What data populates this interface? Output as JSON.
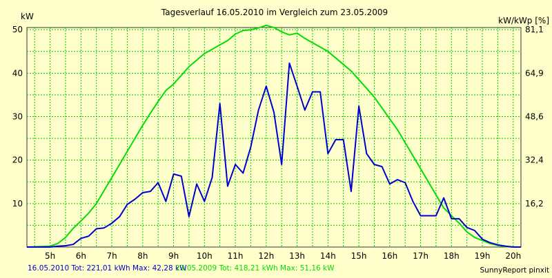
{
  "chart_data": {
    "type": "line",
    "title": "Tagesverlauf 16.05.2010 im Vergleich zum 23.05.2009",
    "ylabel_left": "kW",
    "ylabel_right": "kW/kWp [%]",
    "xlim": [
      4.25,
      20.25
    ],
    "ylim": [
      0,
      50.5
    ],
    "grid": true,
    "x_ticks": [
      {
        "x": 5,
        "label": "5h"
      },
      {
        "x": 6,
        "label": "6h"
      },
      {
        "x": 7,
        "label": "7h"
      },
      {
        "x": 8,
        "label": "8h"
      },
      {
        "x": 9,
        "label": "9h"
      },
      {
        "x": 10,
        "label": "10h"
      },
      {
        "x": 11,
        "label": "11h"
      },
      {
        "x": 12,
        "label": "12h"
      },
      {
        "x": 13,
        "label": "13h"
      },
      {
        "x": 14,
        "label": "14h"
      },
      {
        "x": 15,
        "label": "15h"
      },
      {
        "x": 16,
        "label": "16h"
      },
      {
        "x": 17,
        "label": "17h"
      },
      {
        "x": 18,
        "label": "18h"
      },
      {
        "x": 19,
        "label": "19h"
      },
      {
        "x": 20,
        "label": "20h"
      }
    ],
    "y_ticks_left": [
      {
        "y": 10,
        "label": "10"
      },
      {
        "y": 20,
        "label": "20"
      },
      {
        "y": 30,
        "label": "30"
      },
      {
        "y": 40,
        "label": "40"
      },
      {
        "y": 50,
        "label": "50"
      }
    ],
    "y_ticks_right": [
      {
        "y": 10,
        "label": "16,2"
      },
      {
        "y": 20,
        "label": "32,4"
      },
      {
        "y": 30,
        "label": "48,6"
      },
      {
        "y": 40,
        "label": "64,9"
      },
      {
        "y": 50,
        "label": "81,1"
      }
    ],
    "series": [
      {
        "color": "#0000cc",
        "points": [
          [
            4.25,
            0
          ],
          [
            5,
            0
          ],
          [
            5.25,
            0.2
          ],
          [
            5.5,
            0.3
          ],
          [
            5.75,
            0.6
          ],
          [
            6,
            2.0
          ],
          [
            6.25,
            2.5
          ],
          [
            6.5,
            4.2
          ],
          [
            6.75,
            4.4
          ],
          [
            7,
            5.5
          ],
          [
            7.25,
            7.0
          ],
          [
            7.5,
            9.8
          ],
          [
            7.75,
            11.0
          ],
          [
            8,
            12.5
          ],
          [
            8.25,
            12.8
          ],
          [
            8.5,
            14.8
          ],
          [
            8.75,
            10.5
          ],
          [
            9,
            16.8
          ],
          [
            9.25,
            16.3
          ],
          [
            9.5,
            7.0
          ],
          [
            9.75,
            14.5
          ],
          [
            10,
            10.5
          ],
          [
            10.25,
            16.0
          ],
          [
            10.5,
            33.0
          ],
          [
            10.75,
            14.0
          ],
          [
            11,
            19.0
          ],
          [
            11.25,
            17.0
          ],
          [
            11.5,
            23.0
          ],
          [
            11.75,
            31.5
          ],
          [
            12,
            37.0
          ],
          [
            12.25,
            31.0
          ],
          [
            12.5,
            19.0
          ],
          [
            12.75,
            42.3
          ],
          [
            13,
            37.0
          ],
          [
            13.25,
            31.5
          ],
          [
            13.5,
            35.7
          ],
          [
            13.75,
            35.7
          ],
          [
            14,
            21.5
          ],
          [
            14.25,
            24.7
          ],
          [
            14.5,
            24.7
          ],
          [
            14.75,
            12.8
          ],
          [
            15,
            32.4
          ],
          [
            15.25,
            21.5
          ],
          [
            15.5,
            19.0
          ],
          [
            15.75,
            18.5
          ],
          [
            16,
            14.5
          ],
          [
            16.25,
            15.5
          ],
          [
            16.5,
            14.8
          ],
          [
            16.75,
            10.5
          ],
          [
            17,
            7.2
          ],
          [
            17.25,
            7.2
          ],
          [
            17.5,
            7.2
          ],
          [
            17.75,
            11.3
          ],
          [
            18,
            6.5
          ],
          [
            18.25,
            6.5
          ],
          [
            18.5,
            4.5
          ],
          [
            18.75,
            3.8
          ],
          [
            19,
            1.8
          ],
          [
            19.25,
            1.0
          ],
          [
            19.5,
            0.5
          ],
          [
            19.75,
            0.2
          ],
          [
            20,
            0
          ],
          [
            20.25,
            0
          ]
        ]
      },
      {
        "color": "#00dd00",
        "points": [
          [
            4.25,
            0
          ],
          [
            5,
            0.2
          ],
          [
            5.25,
            0.8
          ],
          [
            5.5,
            2.2
          ],
          [
            5.75,
            4.3
          ],
          [
            6,
            6.0
          ],
          [
            6.25,
            7.8
          ],
          [
            6.5,
            10.0
          ],
          [
            6.75,
            13.0
          ],
          [
            7,
            16.0
          ],
          [
            7.25,
            19.0
          ],
          [
            7.5,
            22.0
          ],
          [
            7.75,
            25.0
          ],
          [
            8,
            28.0
          ],
          [
            8.25,
            30.8
          ],
          [
            8.5,
            33.5
          ],
          [
            8.75,
            36.0
          ],
          [
            9,
            37.5
          ],
          [
            9.25,
            39.5
          ],
          [
            9.5,
            41.5
          ],
          [
            9.75,
            43.0
          ],
          [
            10,
            44.5
          ],
          [
            10.25,
            45.5
          ],
          [
            10.5,
            46.5
          ],
          [
            10.75,
            47.5
          ],
          [
            11,
            49.0
          ],
          [
            11.25,
            49.8
          ],
          [
            11.5,
            50.0
          ],
          [
            11.75,
            50.4
          ],
          [
            12,
            51.0
          ],
          [
            12.25,
            50.5
          ],
          [
            12.5,
            49.5
          ],
          [
            12.75,
            48.8
          ],
          [
            13,
            49.2
          ],
          [
            13.25,
            48.0
          ],
          [
            13.5,
            47.0
          ],
          [
            13.75,
            46.0
          ],
          [
            14,
            45.0
          ],
          [
            14.25,
            43.5
          ],
          [
            14.5,
            42.0
          ],
          [
            14.75,
            40.5
          ],
          [
            15,
            38.5
          ],
          [
            15.25,
            36.5
          ],
          [
            15.5,
            34.5
          ],
          [
            15.75,
            32.0
          ],
          [
            16,
            29.5
          ],
          [
            16.25,
            27.0
          ],
          [
            16.5,
            24.0
          ],
          [
            16.75,
            21.0
          ],
          [
            17,
            18.0
          ],
          [
            17.25,
            15.0
          ],
          [
            17.5,
            12.0
          ],
          [
            17.75,
            9.0
          ],
          [
            18,
            7.2
          ],
          [
            18.25,
            5.5
          ],
          [
            18.5,
            3.5
          ],
          [
            18.75,
            2.2
          ],
          [
            19,
            1.5
          ],
          [
            19.25,
            0.8
          ],
          [
            19.5,
            0.4
          ],
          [
            19.75,
            0.1
          ],
          [
            20,
            0
          ],
          [
            20.25,
            0
          ]
        ]
      }
    ]
  },
  "footer": {
    "series1_text": "16.05.2010 Tot: 221,01 kWh Max: 42,28 kW",
    "series2_text": "23.05.2009 Tot: 418,21 kWh Max: 51,16 kW",
    "credit": "SunnyReport pinxit"
  }
}
